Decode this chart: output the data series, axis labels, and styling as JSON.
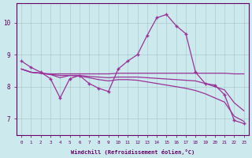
{
  "xlabel": "Windchill (Refroidissement éolien,°C)",
  "x": [
    0,
    1,
    2,
    3,
    4,
    5,
    6,
    7,
    8,
    9,
    10,
    11,
    12,
    13,
    14,
    15,
    16,
    17,
    18,
    19,
    20,
    21,
    22,
    23
  ],
  "line1": [
    8.8,
    8.6,
    8.45,
    8.25,
    7.65,
    8.25,
    8.35,
    8.1,
    7.95,
    7.85,
    8.55,
    8.8,
    9.0,
    9.6,
    10.15,
    10.25,
    9.9,
    9.65,
    8.45,
    8.1,
    8.05,
    7.75,
    6.95,
    6.85
  ],
  "line2": [
    8.55,
    8.45,
    8.42,
    8.4,
    8.4,
    8.4,
    8.4,
    8.4,
    8.4,
    8.4,
    8.42,
    8.42,
    8.42,
    8.42,
    8.42,
    8.42,
    8.42,
    8.42,
    8.42,
    8.42,
    8.42,
    8.42,
    8.4,
    8.4
  ],
  "line3": [
    8.55,
    8.45,
    8.42,
    8.38,
    8.35,
    8.35,
    8.35,
    8.32,
    8.3,
    8.28,
    8.3,
    8.3,
    8.3,
    8.28,
    8.26,
    8.24,
    8.22,
    8.2,
    8.18,
    8.1,
    8.0,
    7.9,
    7.5,
    7.25
  ],
  "line4": [
    8.55,
    8.45,
    8.42,
    8.38,
    8.28,
    8.35,
    8.33,
    8.28,
    8.22,
    8.18,
    8.22,
    8.22,
    8.2,
    8.15,
    8.1,
    8.05,
    8.0,
    7.95,
    7.88,
    7.78,
    7.65,
    7.52,
    7.08,
    6.92
  ],
  "line_color": "#993399",
  "bg_color": "#cce9ed",
  "grid_color": "#aacccc",
  "tick_color": "#660066",
  "ylim": [
    6.5,
    10.6
  ],
  "yticks": [
    7,
    8,
    9,
    10
  ],
  "xlim": [
    -0.5,
    23.5
  ]
}
